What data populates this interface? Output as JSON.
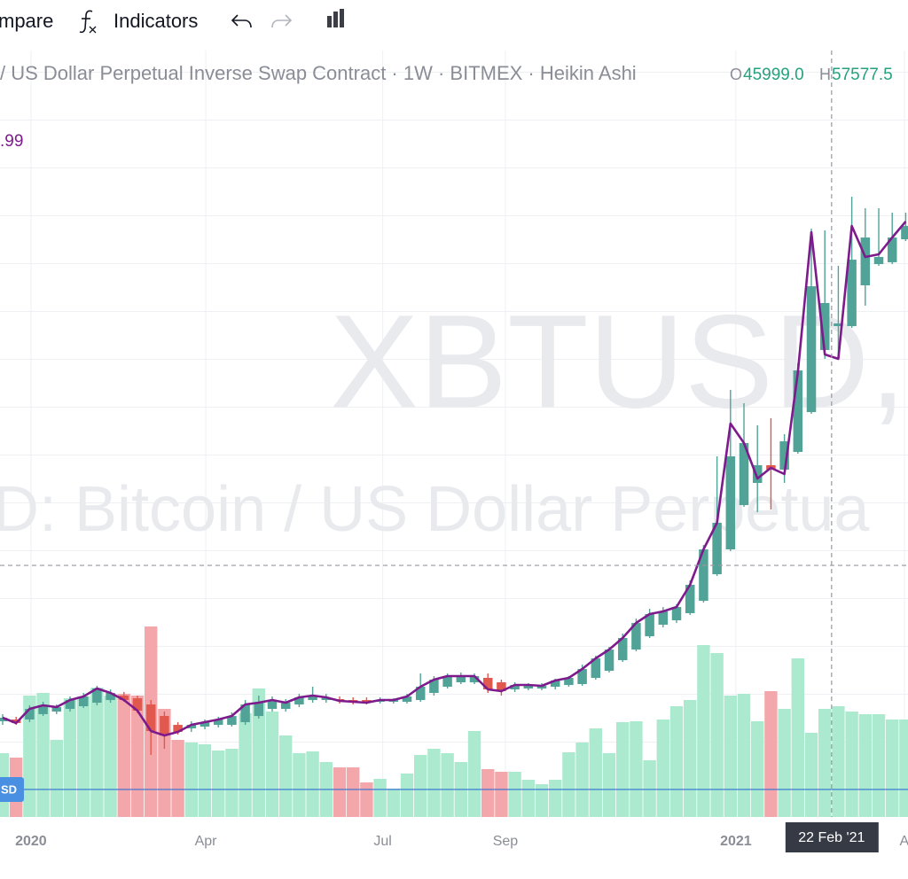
{
  "toolbar": {
    "compare": "mpare",
    "indicators": "Indicators"
  },
  "legend": {
    "title": "/ US Dollar Perpetual Inverse Swap Contract · 1W · BITMEX · Heikin Ashi",
    "o_label": "O",
    "o_value": "45999.0",
    "h_label": "H",
    "h_value": "57577.5",
    "indicator_value": ".99"
  },
  "chart_data": {
    "type": "candlestick",
    "watermark": [
      "XBTUSD,",
      "D: Bitcoin / US Dollar Perpetua"
    ],
    "open": [
      7150,
      7320,
      7320,
      7840,
      8090,
      8350,
      8610,
      8950,
      9210,
      9640,
      9380,
      8780,
      7660,
      6800,
      6460,
      6630,
      6800,
      6800,
      7060,
      7660,
      8350,
      8350,
      8780,
      9210,
      9210,
      9300,
      9210,
      9210,
      9040,
      9040,
      9040,
      9210,
      9900,
      10500,
      10930,
      10930,
      11360,
      10930,
      10240,
      10330,
      10330,
      10500,
      10670,
      10760,
      11360,
      12050,
      13080,
      14110,
      15400,
      16520,
      16950,
      17640,
      18840,
      21420,
      23830,
      28130,
      30280,
      32000,
      31570,
      33290,
      37160,
      43180,
      45500,
      45500,
      49460,
      51520,
      51700,
      53930
    ],
    "high": [
      7840,
      7580,
      8700,
      9040,
      8780,
      9560,
      9900,
      10590,
      10240,
      9990,
      9640,
      9210,
      8090,
      7060,
      7150,
      7320,
      7580,
      8010,
      9210,
      9640,
      9560,
      9300,
      9810,
      10500,
      9810,
      9560,
      9470,
      9470,
      9470,
      9380,
      9810,
      11790,
      11530,
      11790,
      11880,
      11790,
      11790,
      11190,
      10930,
      10850,
      10850,
      11280,
      11530,
      12650,
      13510,
      14370,
      15660,
      17120,
      18070,
      18240,
      18500,
      20820,
      24260,
      32860,
      39310,
      38020,
      35870,
      36560,
      35010,
      41890,
      54960,
      54790,
      51350,
      58060,
      56940,
      56940,
      56510,
      56510
    ],
    "low": [
      6800,
      6800,
      7060,
      7660,
      7840,
      8090,
      8440,
      8700,
      8950,
      9040,
      7920,
      3880,
      4480,
      5860,
      6120,
      6370,
      6550,
      6630,
      6800,
      7410,
      8090,
      8090,
      8520,
      8950,
      8950,
      8870,
      8780,
      8780,
      8870,
      8870,
      8870,
      9040,
      9640,
      10330,
      10760,
      10760,
      9900,
      9640,
      9990,
      10160,
      10160,
      10240,
      10500,
      10590,
      11190,
      11880,
      12910,
      13940,
      15230,
      16260,
      16690,
      17470,
      18670,
      21250,
      23660,
      27960,
      27440,
      27700,
      30280,
      33120,
      36990,
      42320,
      42320,
      45330,
      47480,
      51350,
      51520,
      53760
    ],
    "close": [
      7490,
      6980,
      8350,
      8700,
      8520,
      9210,
      9560,
      10330,
      9900,
      9210,
      8180,
      6200,
      5770,
      6120,
      6800,
      7060,
      7320,
      7660,
      8780,
      8950,
      9210,
      8950,
      9470,
      9640,
      9470,
      9130,
      9040,
      8950,
      9210,
      9210,
      9560,
      10500,
      11190,
      11530,
      11530,
      11530,
      10240,
      10070,
      10670,
      10670,
      10590,
      11100,
      11360,
      12220,
      13250,
      14110,
      15230,
      16690,
      17550,
      17810,
      18240,
      20390,
      23830,
      26410,
      32860,
      34150,
      32000,
      31570,
      34320,
      41200,
      49370,
      47740,
      45760,
      51950,
      54100,
      52210,
      54100,
      55220
    ],
    "line": {
      "color": "#7d1a8c",
      "values": [
        7490,
        6980,
        8350,
        8700,
        8520,
        9210,
        9560,
        10330,
        9900,
        9210,
        8180,
        6200,
        5770,
        6120,
        6800,
        7060,
        7320,
        7660,
        8780,
        8950,
        9210,
        8950,
        9470,
        9640,
        9470,
        9130,
        9040,
        8950,
        9210,
        9210,
        9560,
        10500,
        11190,
        11530,
        11530,
        11530,
        10240,
        10070,
        10670,
        10670,
        10590,
        11100,
        11360,
        12220,
        13250,
        14110,
        15230,
        16690,
        17550,
        17810,
        18240,
        20390,
        23830,
        26410,
        36040,
        34150,
        30710,
        31740,
        31140,
        41030,
        54620,
        42750,
        42320,
        55220,
        52210,
        52470,
        54100,
        55650
      ]
    },
    "volume": {
      "ylim": [
        0,
        240
      ],
      "values": [
        72,
        67,
        137,
        140,
        87,
        134,
        136,
        146,
        137,
        139,
        137,
        215,
        122,
        87,
        84,
        82,
        75,
        77,
        117,
        145,
        119,
        92,
        72,
        74,
        62,
        56,
        56,
        39,
        43,
        32,
        49,
        70,
        77,
        72,
        62,
        97,
        54,
        51,
        51,
        42,
        37,
        42,
        73,
        84,
        100,
        72,
        107,
        108,
        64,
        110,
        125,
        132,
        194,
        185,
        137,
        139,
        108,
        142,
        122,
        179,
        95,
        122,
        125,
        119,
        116,
        116,
        110,
        110
      ]
    },
    "colors": {
      "up": "#52a397",
      "down": "#e0584e",
      "volume_up": "#abeacf",
      "volume_down": "#f4a7ab"
    },
    "xlim": [
      -0.197,
      67.17
    ],
    "ylim": [
      -2140,
      72250
    ],
    "xticks": [
      {
        "value": 2.1,
        "label": "2020"
      },
      {
        "value": 15.07,
        "label": "Apr"
      },
      {
        "value": 28.2,
        "label": "Jul"
      },
      {
        "value": 37.3,
        "label": "Sep"
      },
      {
        "value": 54.4,
        "label": "2021"
      },
      {
        "value": 66.9,
        "label": "A"
      }
    ],
    "crosshair": {
      "x": 61.5,
      "y": 22280,
      "label": "22 Feb '21"
    },
    "price_line": {
      "value": 530,
      "label": "SD",
      "color": "#2f6fd6"
    }
  }
}
